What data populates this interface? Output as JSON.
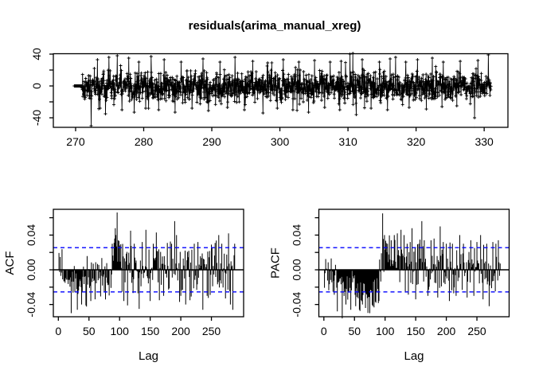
{
  "title": "residuals(arima_manual_xreg)",
  "colors": {
    "background": "#ffffff",
    "foreground": "#000000",
    "series": "#000000",
    "confidence_line": "#0000ff"
  },
  "chart_data": [
    {
      "id": "residuals",
      "type": "line",
      "title": "residuals(arima_manual_xreg)",
      "xlabel": "",
      "ylabel": "",
      "marker": "plus",
      "xlim": [
        266.73,
        333.49
      ],
      "ylim": [
        -52,
        40.5
      ],
      "xticks": [
        270,
        280,
        290,
        300,
        310,
        320,
        330
      ],
      "xtick_labels": [
        "270",
        "280",
        "290",
        "300",
        "310",
        "320",
        "330"
      ],
      "yticks": [
        -40,
        -20,
        0,
        20,
        40
      ],
      "ytick_labels": [
        "-40",
        "",
        "0",
        "",
        "40"
      ],
      "description": "dense noisy residual series, core band about +/-15, start flat at 0",
      "data_spec": {
        "seed": 1337,
        "n": 1600,
        "x_start": 269.8,
        "x_end": 331.0,
        "initial_zero_until_x": 270.9,
        "noise_sd": 9.0,
        "heavy_tail_prob": 0.03,
        "heavy_tail_scale": 1.9,
        "taper_after_x": 325,
        "taper_factor": 0.85
      },
      "spikes": [
        [
          272.3,
          -50
        ],
        [
          273.2,
          33
        ],
        [
          273.6,
          -28
        ],
        [
          274.4,
          -35
        ],
        [
          274.9,
          36
        ],
        [
          276.1,
          38
        ],
        [
          276.8,
          -30
        ],
        [
          277.8,
          35
        ],
        [
          278.6,
          -33
        ],
        [
          279.3,
          30
        ],
        [
          280.3,
          -28
        ],
        [
          281.1,
          37
        ],
        [
          282.2,
          -30
        ],
        [
          283.0,
          33
        ],
        [
          284.6,
          -33
        ],
        [
          285.5,
          30
        ],
        [
          287.1,
          -28
        ],
        [
          288.7,
          34
        ],
        [
          289.5,
          -31
        ],
        [
          291.2,
          30
        ],
        [
          292.3,
          -27
        ],
        [
          293.4,
          36
        ],
        [
          294.8,
          -30
        ],
        [
          296.0,
          31
        ],
        [
          297.5,
          -34
        ],
        [
          298.2,
          29
        ],
        [
          299.6,
          -28
        ],
        [
          300.5,
          33
        ],
        [
          301.9,
          -30
        ],
        [
          302.8,
          30
        ],
        [
          304.2,
          -33
        ],
        [
          305.1,
          32
        ],
        [
          306.6,
          -27
        ],
        [
          307.4,
          30
        ],
        [
          308.8,
          -30
        ],
        [
          309.0,
          31
        ],
        [
          310.3,
          40
        ],
        [
          310.7,
          41
        ],
        [
          311.2,
          -36
        ],
        [
          312.1,
          33
        ],
        [
          313.4,
          -28
        ],
        [
          314.6,
          30
        ],
        [
          315.8,
          -30
        ],
        [
          316.2,
          34
        ],
        [
          317.0,
          36
        ],
        [
          318.5,
          30
        ],
        [
          319.0,
          -27
        ],
        [
          320.2,
          33
        ],
        [
          321.5,
          -29
        ],
        [
          322.4,
          35
        ],
        [
          323.8,
          -26
        ],
        [
          324.0,
          30
        ],
        [
          326.0,
          -25
        ],
        [
          326.5,
          31
        ],
        [
          328.6,
          -40
        ],
        [
          329.1,
          32
        ],
        [
          330.6,
          39
        ]
      ]
    },
    {
      "id": "acf",
      "type": "bar",
      "title": "",
      "xlabel": "Lag",
      "ylabel": "ACF",
      "xlim": [
        -8.2,
        302.6
      ],
      "ylim": [
        -0.0541,
        0.0697
      ],
      "xticks": [
        0,
        50,
        100,
        150,
        200,
        250
      ],
      "xtick_labels": [
        "0",
        "50",
        "100",
        "150",
        "200",
        "250"
      ],
      "yticks": [
        -0.04,
        -0.02,
        0,
        0.02,
        0.04,
        0.06
      ],
      "ytick_labels": [
        "-0.04",
        "",
        "0.00",
        "",
        "0.04",
        ""
      ],
      "conf_level": 0.0255,
      "lag_max": 288,
      "description": "autocorrelations: mostly negative for lags 10-60, strong positive spike near lag 96, scattered spikes beyond the +/-0.0255 bounds",
      "data_spec": {
        "seed": 2024,
        "sd_early": 0.011,
        "sd_late": 0.014,
        "base_segments": [
          {
            "from": 1,
            "to": 8,
            "mean": 0.003
          },
          {
            "from": 9,
            "to": 55,
            "mean": -0.011
          },
          {
            "from": 56,
            "to": 85,
            "mean": -0.01
          },
          {
            "from": 86,
            "to": 95,
            "mean_ramp": [
              0.0,
              0.03
            ]
          },
          {
            "from": 97,
            "to": 105,
            "mean": 0.012
          },
          {
            "from": 106,
            "to": 288,
            "mean": 0.001
          }
        ]
      },
      "spikes": [
        [
          21,
          -0.05
        ],
        [
          31,
          -0.046
        ],
        [
          38,
          -0.04
        ],
        [
          45,
          -0.041
        ],
        [
          53,
          -0.036
        ],
        [
          60,
          -0.034
        ],
        [
          88,
          0.03
        ],
        [
          92,
          0.036
        ],
        [
          94,
          0.04
        ],
        [
          96,
          0.066
        ],
        [
          98,
          0.034
        ],
        [
          100,
          0.028
        ],
        [
          107,
          -0.036
        ],
        [
          113,
          -0.041
        ],
        [
          118,
          0.045
        ],
        [
          124,
          0.03
        ],
        [
          132,
          -0.045
        ],
        [
          137,
          0.032
        ],
        [
          143,
          0.046
        ],
        [
          150,
          -0.036
        ],
        [
          155,
          0.03
        ],
        [
          160,
          0.043
        ],
        [
          165,
          -0.035
        ],
        [
          172,
          -0.03
        ],
        [
          178,
          0.031
        ],
        [
          185,
          0.03
        ],
        [
          190,
          0.056
        ],
        [
          193,
          0.04
        ],
        [
          200,
          -0.03
        ],
        [
          208,
          -0.04
        ],
        [
          215,
          -0.035
        ],
        [
          222,
          0.03
        ],
        [
          228,
          0.032
        ],
        [
          236,
          -0.046
        ],
        [
          243,
          -0.03
        ],
        [
          250,
          0.029
        ],
        [
          256,
          0.031
        ],
        [
          262,
          0.04
        ],
        [
          267,
          0.03
        ],
        [
          273,
          -0.033
        ],
        [
          278,
          0.042
        ],
        [
          281,
          -0.04
        ],
        [
          285,
          -0.046
        ],
        [
          288,
          0.03
        ]
      ]
    },
    {
      "id": "pacf",
      "type": "bar",
      "title": "",
      "xlabel": "Lag",
      "ylabel": "PACF",
      "xlim": [
        -8.2,
        302.6
      ],
      "ylim": [
        -0.0541,
        0.0697
      ],
      "xticks": [
        0,
        50,
        100,
        150,
        200,
        250
      ],
      "xtick_labels": [
        "0",
        "50",
        "100",
        "150",
        "200",
        "250"
      ],
      "yticks": [
        -0.04,
        -0.02,
        0,
        0.02,
        0.04,
        0.06
      ],
      "ytick_labels": [
        "-0.04",
        "",
        "0.00",
        "",
        "0.04",
        ""
      ],
      "conf_level": 0.0255,
      "lag_max": 288,
      "description": "partial autocorrelations: dense negative block lags 10-90, strong positive spike near lag 96, many positive spikes beyond bounds afterwards",
      "data_spec": {
        "seed": 777,
        "sd_early": 0.01,
        "sd_late": 0.014,
        "base_segments": [
          {
            "from": 1,
            "to": 10,
            "mean": -0.004
          },
          {
            "from": 11,
            "to": 50,
            "mean": -0.014
          },
          {
            "from": 51,
            "to": 90,
            "mean": -0.026
          },
          {
            "from": 91,
            "to": 95,
            "mean": 0.01
          },
          {
            "from": 97,
            "to": 288,
            "mean": 0.003
          }
        ],
        "force_negative_from": 51,
        "force_negative_to": 90
      },
      "spikes": [
        [
          22,
          -0.048
        ],
        [
          30,
          -0.056
        ],
        [
          36,
          -0.04
        ],
        [
          44,
          -0.046
        ],
        [
          52,
          -0.042
        ],
        [
          58,
          -0.046
        ],
        [
          63,
          -0.04
        ],
        [
          68,
          -0.044
        ],
        [
          75,
          -0.05
        ],
        [
          80,
          -0.042
        ],
        [
          85,
          -0.038
        ],
        [
          90,
          -0.036
        ],
        [
          96,
          0.065
        ],
        [
          99,
          0.04
        ],
        [
          104,
          0.03
        ],
        [
          110,
          0.034
        ],
        [
          115,
          0.04
        ],
        [
          120,
          0.042
        ],
        [
          126,
          0.046
        ],
        [
          131,
          0.04
        ],
        [
          136,
          0.03
        ],
        [
          141,
          0.032
        ],
        [
          144,
          0.048
        ],
        [
          150,
          -0.034
        ],
        [
          155,
          0.03
        ],
        [
          160,
          0.056
        ],
        [
          164,
          0.034
        ],
        [
          170,
          -0.03
        ],
        [
          175,
          0.034
        ],
        [
          180,
          0.036
        ],
        [
          186,
          -0.032
        ],
        [
          190,
          0.05
        ],
        [
          195,
          0.032
        ],
        [
          200,
          0.03
        ],
        [
          205,
          -0.036
        ],
        [
          210,
          0.03
        ],
        [
          216,
          -0.03
        ],
        [
          222,
          0.04
        ],
        [
          228,
          0.03
        ],
        [
          234,
          -0.032
        ],
        [
          240,
          0.034
        ],
        [
          245,
          -0.03
        ],
        [
          250,
          0.032
        ],
        [
          256,
          0.04
        ],
        [
          260,
          -0.034
        ],
        [
          266,
          0.03
        ],
        [
          270,
          -0.042
        ],
        [
          276,
          0.032
        ],
        [
          281,
          0.03
        ],
        [
          285,
          0.034
        ]
      ]
    }
  ]
}
